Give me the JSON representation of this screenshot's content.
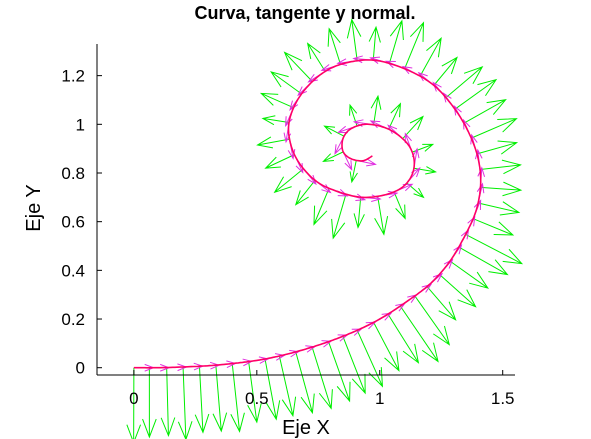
{
  "chart_data": {
    "type": "line",
    "title": "Curva, tangente y normal.",
    "xlabel": "Eje X",
    "ylabel": "Eje Y",
    "xlim": [
      -0.15,
      1.55
    ],
    "ylim": [
      -0.03,
      1.33
    ],
    "xticks": [
      {
        "value": 0,
        "label": "0"
      },
      {
        "value": 0.5,
        "label": "0.5"
      },
      {
        "value": 1,
        "label": "1"
      },
      {
        "value": 1.5,
        "label": "1.5"
      }
    ],
    "yticks": [
      {
        "value": 0,
        "label": "0"
      },
      {
        "value": 0.2,
        "label": "0.2"
      },
      {
        "value": 0.4,
        "label": "0.4"
      },
      {
        "value": 0.6,
        "label": "0.6"
      },
      {
        "value": 0.8,
        "label": "0.8"
      },
      {
        "value": 1,
        "label": "1"
      },
      {
        "value": 1.2,
        "label": "1.2"
      }
    ],
    "grid": false,
    "series": [
      {
        "role": "curve",
        "color": "#ff0066",
        "x": [
          0.0,
          0.1,
          0.2,
          0.3,
          0.4,
          0.5,
          0.6,
          0.7,
          0.8,
          0.9,
          1.0,
          1.1,
          1.2,
          1.28,
          1.34,
          1.39,
          1.41,
          1.4,
          1.36,
          1.3,
          1.22,
          1.12,
          1.0,
          0.9,
          0.8,
          0.72,
          0.66,
          0.63,
          0.64,
          0.68,
          0.75,
          0.84,
          0.93,
          1.02,
          1.09,
          1.13,
          1.14,
          1.12,
          1.07,
          1.01,
          0.94,
          0.88,
          0.85,
          0.85,
          0.88,
          0.93,
          0.97
        ],
        "y": [
          0.0,
          0.0,
          0.003,
          0.008,
          0.017,
          0.03,
          0.05,
          0.077,
          0.11,
          0.15,
          0.2,
          0.265,
          0.34,
          0.43,
          0.53,
          0.64,
          0.75,
          0.86,
          0.97,
          1.07,
          1.16,
          1.22,
          1.26,
          1.26,
          1.23,
          1.17,
          1.09,
          1.0,
          0.91,
          0.83,
          0.76,
          0.72,
          0.7,
          0.71,
          0.74,
          0.79,
          0.85,
          0.91,
          0.96,
          0.99,
          1.0,
          0.98,
          0.94,
          0.89,
          0.86,
          0.85,
          0.87
        ]
      },
      {
        "role": "tangent-arrows",
        "color": "#e030e0",
        "arrow_length": 0.08
      },
      {
        "role": "normal-arrows",
        "color": "#00ee00",
        "note_length_scale": "curvature"
      }
    ]
  },
  "colors": {
    "curve": "#ff0066",
    "tangent": "#e030e0",
    "normal": "#00ee00",
    "axis": "#000000"
  }
}
